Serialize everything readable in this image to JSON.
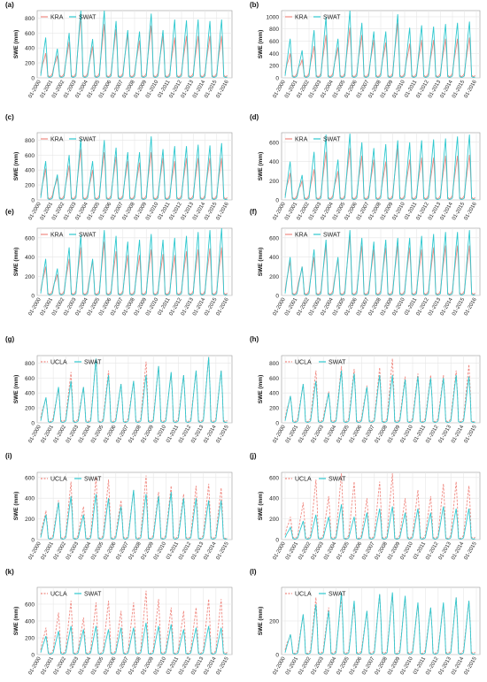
{
  "colors": {
    "model_a": "#f08a82",
    "swat": "#2ec8cf",
    "grid": "#e6e6e6",
    "axis": "#333333"
  },
  "chart_data": [
    {
      "type": "line",
      "panel": "(a)",
      "legend": [
        "KRA",
        "SWAT"
      ],
      "ylabel": "SWE (mm)",
      "ylim": [
        0,
        900
      ],
      "yticks": [
        0,
        200,
        400,
        600,
        800
      ],
      "xticks": [
        "01-2000",
        "01-2001",
        "01-2002",
        "01-2003",
        "01-2004",
        "01-2005",
        "01-2006",
        "01-2007",
        "01-2008",
        "01-2009",
        "01-2010",
        "01-2011",
        "01-2012",
        "01-2013",
        "01-2014",
        "01-2015",
        "01-2016"
      ],
      "peaks_a": [
        330,
        300,
        480,
        820,
        420,
        720,
        650,
        580,
        500,
        700,
        560,
        540,
        560,
        560,
        560,
        560
      ],
      "peaks_b": [
        540,
        390,
        600,
        920,
        520,
        920,
        760,
        640,
        620,
        860,
        640,
        780,
        770,
        780,
        760,
        780
      ]
    },
    {
      "type": "line",
      "panel": "(b)",
      "legend": [
        "KRA",
        "SWAT"
      ],
      "ylabel": "SWE (mm)",
      "ylim": [
        0,
        1100
      ],
      "yticks": [
        0,
        200,
        400,
        600,
        800,
        1000
      ],
      "xticks": [
        "01-2000",
        "01-2001",
        "01-2002",
        "01-2003",
        "01-2004",
        "01-2005",
        "01-2006",
        "01-2007",
        "01-2008",
        "01-2009",
        "01-2010",
        "01-2011",
        "01-2012",
        "01-2013",
        "01-2014",
        "01-2015",
        "01-2016"
      ],
      "peaks_a": [
        400,
        300,
        520,
        700,
        500,
        820,
        700,
        620,
        580,
        900,
        560,
        620,
        620,
        640,
        640,
        660
      ],
      "peaks_b": [
        640,
        450,
        780,
        1000,
        640,
        1100,
        900,
        760,
        760,
        1040,
        820,
        860,
        840,
        880,
        900,
        920
      ]
    },
    {
      "type": "line",
      "panel": "(c)",
      "legend": [
        "KRA",
        "SWAT"
      ],
      "ylabel": "SWE (mm)",
      "ylim": [
        0,
        900
      ],
      "yticks": [
        0,
        200,
        400,
        600,
        800
      ],
      "xticks": [
        "01-2000",
        "01-2001",
        "01-2002",
        "01-2003",
        "01-2004",
        "01-2005",
        "01-2006",
        "01-2007",
        "01-2008",
        "01-2009",
        "01-2010",
        "01-2011",
        "01-2012",
        "01-2013",
        "01-2014",
        "01-2015",
        "01-2016"
      ],
      "peaks_a": [
        420,
        300,
        460,
        680,
        400,
        640,
        580,
        520,
        500,
        640,
        560,
        520,
        560,
        560,
        560,
        560
      ],
      "peaks_b": [
        520,
        340,
        600,
        820,
        520,
        800,
        700,
        640,
        640,
        850,
        680,
        720,
        720,
        740,
        730,
        760
      ]
    },
    {
      "type": "line",
      "panel": "(d)",
      "legend": [
        "KRA",
        "SWAT"
      ],
      "ylabel": "SWE (mm)",
      "ylim": [
        0,
        700
      ],
      "yticks": [
        0,
        200,
        400,
        600
      ],
      "xticks": [
        "01-2000",
        "01-2001",
        "01-2002",
        "01-2003",
        "01-2004",
        "01-2005",
        "01-2006",
        "01-2007",
        "01-2008",
        "01-2009",
        "01-2010",
        "01-2011",
        "01-2012",
        "01-2013",
        "01-2014",
        "01-2015",
        "01-2016"
      ],
      "peaks_a": [
        280,
        200,
        320,
        500,
        300,
        540,
        460,
        420,
        400,
        540,
        420,
        440,
        440,
        460,
        460,
        470
      ],
      "peaks_b": [
        400,
        260,
        500,
        680,
        420,
        690,
        600,
        540,
        580,
        620,
        600,
        620,
        630,
        640,
        660,
        680
      ]
    },
    {
      "type": "line",
      "panel": "(e)",
      "legend": [
        "KRA",
        "SWAT"
      ],
      "ylabel": "SWE (mm)",
      "ylim": [
        0,
        700
      ],
      "yticks": [
        0,
        200,
        400,
        600
      ],
      "xticks": [
        "01-2000",
        "01-2001",
        "01-2002",
        "01-2003",
        "01-2004",
        "01-2005",
        "01-2006",
        "01-2007",
        "01-2008",
        "01-2009",
        "01-2010",
        "01-2011",
        "01-2012",
        "01-2013",
        "01-2014",
        "01-2015",
        "01-2016"
      ],
      "peaks_a": [
        300,
        220,
        380,
        500,
        360,
        560,
        460,
        420,
        420,
        480,
        430,
        420,
        460,
        480,
        490,
        500
      ],
      "peaks_b": [
        380,
        280,
        500,
        630,
        380,
        680,
        620,
        560,
        580,
        640,
        580,
        600,
        620,
        660,
        680,
        700
      ]
    },
    {
      "type": "line",
      "panel": "(f)",
      "legend": [
        "KRA",
        "SWAT"
      ],
      "ylabel": "SWE (mm)",
      "ylim": [
        0,
        700
      ],
      "yticks": [
        0,
        200,
        400,
        600
      ],
      "xticks": [
        "01-2000",
        "01-2001",
        "01-2002",
        "01-2003",
        "01-2004",
        "01-2005",
        "01-2006",
        "01-2007",
        "01-2008",
        "01-2009",
        "01-2010",
        "01-2011",
        "01-2012",
        "01-2013",
        "01-2014",
        "01-2015",
        "01-2016"
      ],
      "peaks_a": [
        360,
        300,
        400,
        520,
        380,
        620,
        520,
        480,
        500,
        520,
        500,
        480,
        500,
        520,
        520,
        520
      ],
      "peaks_b": [
        400,
        300,
        480,
        580,
        400,
        680,
        600,
        560,
        580,
        600,
        600,
        620,
        640,
        660,
        660,
        680
      ]
    },
    {
      "type": "line",
      "panel": "(g)",
      "legend": [
        "UCLA",
        "SWAT"
      ],
      "ylabel": "SWE (mm)",
      "ylim": [
        0,
        900
      ],
      "yticks": [
        0,
        200,
        400,
        600,
        800
      ],
      "xticks": [
        "01-2000",
        "01-2001",
        "01-2002",
        "01-2003",
        "01-2004",
        "01-2005",
        "01-2006",
        "01-2007",
        "01-2008",
        "01-2009",
        "01-2010",
        "01-2011",
        "01-2012",
        "01-2013",
        "01-2014",
        "01-2015"
      ],
      "peaks_a": [
        340,
        460,
        680,
        480,
        860,
        700,
        520,
        560,
        820,
        760,
        660,
        640,
        700,
        880,
        700
      ],
      "peaks_b": [
        340,
        480,
        560,
        480,
        860,
        640,
        520,
        560,
        640,
        760,
        680,
        640,
        700,
        880,
        700
      ]
    },
    {
      "type": "line",
      "panel": "(h)",
      "legend": [
        "UCLA",
        "SWAT"
      ],
      "ylabel": "SWE (mm)",
      "ylim": [
        0,
        900
      ],
      "yticks": [
        0,
        200,
        400,
        600,
        800
      ],
      "xticks": [
        "01-2000",
        "01-2001",
        "01-2002",
        "01-2003",
        "01-2004",
        "01-2005",
        "01-2006",
        "01-2007",
        "01-2008",
        "01-2009",
        "01-2010",
        "01-2011",
        "01-2012",
        "01-2013",
        "01-2014",
        "01-2015"
      ],
      "peaks_a": [
        360,
        520,
        700,
        420,
        760,
        720,
        500,
        740,
        860,
        620,
        660,
        640,
        640,
        700,
        780
      ],
      "peaks_b": [
        360,
        520,
        560,
        400,
        700,
        660,
        480,
        640,
        640,
        580,
        620,
        600,
        600,
        640,
        620
      ]
    },
    {
      "type": "line",
      "panel": "(i)",
      "legend": [
        "UCLA",
        "SWAT"
      ],
      "ylabel": "SWE (mm)",
      "ylim": [
        0,
        650
      ],
      "yticks": [
        0,
        200,
        400,
        600
      ],
      "xticks": [
        "01-2000",
        "01-2001",
        "01-2002",
        "01-2003",
        "01-2004",
        "01-2005",
        "01-2006",
        "01-2007",
        "01-2008",
        "01-2009",
        "01-2010",
        "01-2011",
        "01-2012",
        "01-2013",
        "01-2014",
        "01-2015"
      ],
      "peaks_a": [
        280,
        380,
        560,
        320,
        600,
        580,
        380,
        480,
        620,
        460,
        520,
        440,
        520,
        540,
        500
      ],
      "peaks_b": [
        240,
        360,
        420,
        240,
        440,
        400,
        320,
        480,
        440,
        420,
        460,
        400,
        400,
        380,
        380
      ]
    },
    {
      "type": "line",
      "panel": "(j)",
      "legend": [
        "UCLA",
        "SWAT"
      ],
      "ylabel": "SWE (mm)",
      "ylim": [
        0,
        650
      ],
      "yticks": [
        0,
        200,
        400,
        600
      ],
      "xticks": [
        "01-2000",
        "01-2001",
        "01-2002",
        "01-2003",
        "01-2004",
        "01-2005",
        "01-2006",
        "01-2007",
        "01-2008",
        "01-2009",
        "01-2010",
        "01-2011",
        "01-2012",
        "01-2013",
        "01-2014",
        "01-2015"
      ],
      "peaks_a": [
        220,
        360,
        580,
        420,
        640,
        560,
        400,
        560,
        640,
        400,
        480,
        420,
        540,
        560,
        520
      ],
      "peaks_b": [
        120,
        180,
        240,
        220,
        340,
        220,
        260,
        300,
        320,
        260,
        300,
        260,
        320,
        300,
        300
      ]
    },
    {
      "type": "line",
      "panel": "(k)",
      "legend": [
        "UCLA",
        "SWAT"
      ],
      "ylabel": "SWE (mm)",
      "ylim": [
        0,
        800
      ],
      "yticks": [
        0,
        200,
        400,
        600
      ],
      "xticks": [
        "01-2000",
        "01-2001",
        "01-2002",
        "01-2003",
        "01-2004",
        "01-2005",
        "01-2006",
        "01-2007",
        "01-2008",
        "01-2009",
        "01-2010",
        "01-2011",
        "01-2012",
        "01-2013",
        "01-2014",
        "01-2015"
      ],
      "peaks_a": [
        320,
        500,
        640,
        440,
        620,
        640,
        520,
        620,
        760,
        660,
        560,
        520,
        560,
        660,
        660
      ],
      "peaks_b": [
        220,
        280,
        340,
        300,
        340,
        300,
        320,
        320,
        380,
        340,
        360,
        300,
        320,
        340,
        320
      ]
    },
    {
      "type": "line",
      "panel": "(l)",
      "legend": [
        "UCLA",
        "SWAT"
      ],
      "ylabel": "SWE (mm)",
      "ylim": [
        0,
        400
      ],
      "yticks": [
        0,
        200
      ],
      "xticks": [
        "01-2000",
        "01-2001",
        "01-2002",
        "01-2003",
        "01-2004",
        "01-2005",
        "01-2006",
        "01-2007",
        "01-2008",
        "01-2009",
        "01-2010",
        "01-2011",
        "01-2012",
        "01-2013",
        "01-2014",
        "01-2015"
      ],
      "peaks_a": [
        120,
        240,
        340,
        280,
        340,
        300,
        260,
        360,
        360,
        340,
        300,
        280,
        300,
        340,
        320
      ],
      "peaks_b": [
        120,
        240,
        300,
        260,
        370,
        320,
        260,
        360,
        370,
        350,
        310,
        280,
        310,
        340,
        320
      ]
    }
  ]
}
